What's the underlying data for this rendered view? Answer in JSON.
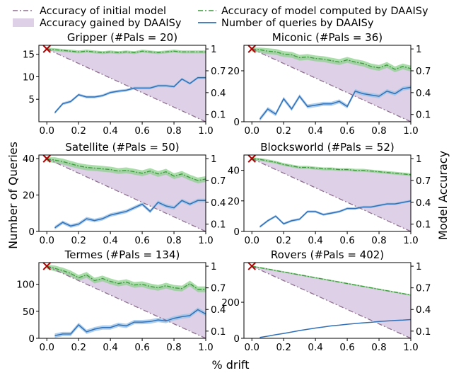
{
  "legend": {
    "initial": "Accuracy of initial model",
    "gained": "Accuracy gained by DAAISy",
    "computed": "Accuracy of model computed by DAAISy",
    "queries": "Number of queries by DAAISy"
  },
  "axis_labels": {
    "left": "Number of Queries",
    "right": "Model Accuracy",
    "bottom": "% drift"
  },
  "colors": {
    "initial": "#8e6f8e",
    "gained_fill": "#ddd0e7",
    "computed": "#3a9a3a",
    "computed_band": "#8fd18f",
    "queries": "#3070b8",
    "queries_band": "#9cc3e6",
    "start_marker": "#b00000"
  },
  "chart_data": [
    {
      "type": "line",
      "title": "Gripper (#Pals = 20)",
      "x": [
        0.0,
        0.05,
        0.1,
        0.15,
        0.2,
        0.25,
        0.3,
        0.35,
        0.4,
        0.45,
        0.5,
        0.55,
        0.6,
        0.65,
        0.7,
        0.75,
        0.8,
        0.85,
        0.9,
        0.95,
        1.0
      ],
      "xticks": [
        "0.0",
        "0.2",
        "0.4",
        "0.6",
        "0.8",
        "1.0"
      ],
      "xlim": [
        -0.05,
        1.0
      ],
      "ylim_left": [
        0,
        17
      ],
      "yticks_left": [
        5,
        10,
        15
      ],
      "ylim_right": [
        0,
        1.05
      ],
      "yticks_right": [
        0.1,
        0.4,
        0.7,
        1.0
      ],
      "series": [
        {
          "name": "Accuracy of initial model",
          "axis": "right",
          "values": [
            1.0,
            0.95,
            0.9,
            0.85,
            0.8,
            0.75,
            0.7,
            0.65,
            0.6,
            0.55,
            0.5,
            0.45,
            0.4,
            0.35,
            0.3,
            0.25,
            0.2,
            0.15,
            0.1,
            0.05,
            0.0
          ]
        },
        {
          "name": "Accuracy of model computed by DAAISy",
          "axis": "right",
          "values": [
            1.0,
            0.99,
            0.98,
            0.97,
            0.96,
            0.97,
            0.96,
            0.95,
            0.96,
            0.95,
            0.96,
            0.95,
            0.97,
            0.96,
            0.95,
            0.96,
            0.97,
            0.96,
            0.96,
            0.96,
            0.96
          ],
          "band": 0.02
        },
        {
          "name": "Number of queries by DAAISy",
          "axis": "left",
          "values": [
            null,
            2,
            4,
            4.5,
            6,
            5.5,
            5.5,
            5.8,
            6.5,
            6.8,
            7,
            7.5,
            7.5,
            7.5,
            8,
            8,
            7.8,
            9.5,
            8.5,
            9.8,
            9.8
          ],
          "band": 0.3
        }
      ]
    },
    {
      "type": "line",
      "title": "Miconic (#Pals = 36)",
      "x": [
        0.0,
        0.05,
        0.1,
        0.15,
        0.2,
        0.25,
        0.3,
        0.35,
        0.4,
        0.45,
        0.5,
        0.55,
        0.6,
        0.65,
        0.7,
        0.75,
        0.8,
        0.85,
        0.9,
        0.95,
        1.0
      ],
      "xticks": [
        "0.0",
        "0.2",
        "0.4",
        "0.6",
        "0.8",
        "1.0"
      ],
      "xlim": [
        -0.05,
        1.0
      ],
      "ylim_left": [
        0,
        30
      ],
      "yticks_left": [
        0,
        20
      ],
      "ylim_right": [
        0,
        1.05
      ],
      "yticks_right": [
        0.1,
        0.4,
        0.7,
        1.0
      ],
      "series": [
        {
          "name": "Accuracy of initial model",
          "axis": "right",
          "values": [
            1.0,
            0.95,
            0.9,
            0.85,
            0.8,
            0.75,
            0.7,
            0.65,
            0.6,
            0.55,
            0.5,
            0.45,
            0.4,
            0.35,
            0.3,
            0.25,
            0.2,
            0.15,
            0.1,
            0.05,
            0.0
          ]
        },
        {
          "name": "Accuracy of model computed by DAAISy",
          "axis": "right",
          "values": [
            1.0,
            0.99,
            0.97,
            0.96,
            0.93,
            0.92,
            0.88,
            0.89,
            0.87,
            0.86,
            0.84,
            0.82,
            0.85,
            0.82,
            0.8,
            0.76,
            0.74,
            0.78,
            0.72,
            0.76,
            0.73
          ],
          "band": 0.04
        },
        {
          "name": "Number of queries by DAAISy",
          "axis": "left",
          "values": [
            null,
            1,
            5,
            3,
            9,
            5,
            10,
            6,
            6.5,
            7,
            7,
            8,
            6,
            12,
            11,
            10.5,
            10,
            12,
            11,
            13,
            13.5
          ],
          "band": 0.8
        }
      ]
    },
    {
      "type": "line",
      "title": "Satellite (#Pals = 50)",
      "x": [
        0.0,
        0.05,
        0.1,
        0.15,
        0.2,
        0.25,
        0.3,
        0.35,
        0.4,
        0.45,
        0.5,
        0.55,
        0.6,
        0.65,
        0.7,
        0.75,
        0.8,
        0.85,
        0.9,
        0.95,
        1.0
      ],
      "xticks": [
        "0.0",
        "0.2",
        "0.4",
        "0.6",
        "0.8",
        "1.0"
      ],
      "xlim": [
        -0.05,
        1.0
      ],
      "ylim_left": [
        0,
        42
      ],
      "yticks_left": [
        0,
        20,
        40
      ],
      "ylim_right": [
        0,
        1.05
      ],
      "yticks_right": [
        0.1,
        0.4,
        0.7,
        1.0
      ],
      "series": [
        {
          "name": "Accuracy of initial model",
          "axis": "right",
          "values": [
            1.0,
            0.95,
            0.9,
            0.85,
            0.8,
            0.75,
            0.7,
            0.65,
            0.6,
            0.55,
            0.5,
            0.45,
            0.4,
            0.35,
            0.3,
            0.25,
            0.2,
            0.15,
            0.1,
            0.05,
            0.0
          ]
        },
        {
          "name": "Accuracy of model computed by DAAISy",
          "axis": "right",
          "values": [
            1.0,
            0.98,
            0.96,
            0.93,
            0.9,
            0.88,
            0.87,
            0.86,
            0.85,
            0.83,
            0.84,
            0.82,
            0.8,
            0.83,
            0.79,
            0.82,
            0.76,
            0.79,
            0.74,
            0.7,
            0.72
          ],
          "band": 0.04
        },
        {
          "name": "Number of queries by DAAISy",
          "axis": "left",
          "values": [
            null,
            2,
            5,
            3,
            4,
            7,
            6,
            7,
            9,
            10,
            11,
            13,
            15,
            11,
            16,
            14,
            13,
            17,
            15,
            17,
            17
          ],
          "band": 1
        }
      ]
    },
    {
      "type": "line",
      "title": "Blocksworld (#Pals = 52)",
      "x": [
        0.0,
        0.05,
        0.1,
        0.15,
        0.2,
        0.25,
        0.3,
        0.35,
        0.4,
        0.45,
        0.5,
        0.55,
        0.6,
        0.65,
        0.7,
        0.75,
        0.8,
        0.85,
        0.9,
        0.95,
        1.0
      ],
      "xticks": [
        "0.0",
        "0.2",
        "0.4",
        "0.6",
        "0.8",
        "1.0"
      ],
      "xlim": [
        -0.05,
        1.0
      ],
      "ylim_left": [
        0,
        50
      ],
      "yticks_left": [
        0,
        20,
        40
      ],
      "ylim_right": [
        0,
        1.05
      ],
      "yticks_right": [
        0.1,
        0.4,
        0.7,
        1.0
      ],
      "series": [
        {
          "name": "Accuracy of initial model",
          "axis": "right",
          "values": [
            1.0,
            0.95,
            0.9,
            0.85,
            0.8,
            0.75,
            0.7,
            0.65,
            0.6,
            0.55,
            0.5,
            0.45,
            0.4,
            0.35,
            0.3,
            0.25,
            0.2,
            0.15,
            0.1,
            0.05,
            0.0
          ]
        },
        {
          "name": "Accuracy of model computed by DAAISy",
          "axis": "right",
          "values": [
            1.0,
            0.99,
            0.97,
            0.95,
            0.92,
            0.9,
            0.88,
            0.88,
            0.87,
            0.86,
            0.86,
            0.85,
            0.85,
            0.84,
            0.84,
            0.83,
            0.82,
            0.81,
            0.8,
            0.79,
            0.78
          ],
          "band": 0.02
        },
        {
          "name": "Number of queries by DAAISy",
          "axis": "left",
          "values": [
            null,
            3,
            7,
            10,
            5,
            7,
            8,
            13,
            13,
            11,
            12,
            13,
            15,
            15,
            16,
            16,
            17,
            18,
            18,
            19,
            20
          ],
          "band": 0.8
        }
      ]
    },
    {
      "type": "line",
      "title": "Termes (#Pals = 134)",
      "x": [
        0.0,
        0.05,
        0.1,
        0.15,
        0.2,
        0.25,
        0.3,
        0.35,
        0.4,
        0.45,
        0.5,
        0.55,
        0.6,
        0.65,
        0.7,
        0.75,
        0.8,
        0.85,
        0.9,
        0.95,
        1.0
      ],
      "xticks": [
        "0.0",
        "0.2",
        "0.4",
        "0.6",
        "0.8",
        "1.0"
      ],
      "xlim": [
        -0.05,
        1.0
      ],
      "ylim_left": [
        0,
        140
      ],
      "yticks_left": [
        0,
        50,
        100
      ],
      "ylim_right": [
        0,
        1.05
      ],
      "yticks_right": [
        0.1,
        0.4,
        0.7,
        1.0
      ],
      "series": [
        {
          "name": "Accuracy of initial model",
          "axis": "right",
          "values": [
            1.0,
            0.95,
            0.9,
            0.85,
            0.8,
            0.75,
            0.7,
            0.65,
            0.6,
            0.55,
            0.5,
            0.45,
            0.4,
            0.35,
            0.3,
            0.25,
            0.2,
            0.15,
            0.1,
            0.05,
            0.0
          ]
        },
        {
          "name": "Accuracy of model computed by DAAISy",
          "axis": "right",
          "values": [
            1.0,
            0.97,
            0.94,
            0.9,
            0.84,
            0.88,
            0.8,
            0.83,
            0.79,
            0.76,
            0.78,
            0.74,
            0.75,
            0.72,
            0.7,
            0.73,
            0.7,
            0.69,
            0.76,
            0.68,
            0.68
          ],
          "band": 0.04
        },
        {
          "name": "Number of queries by DAAISy",
          "axis": "left",
          "values": [
            null,
            5,
            8,
            8,
            25,
            12,
            17,
            20,
            20,
            25,
            23,
            30,
            30,
            31,
            34,
            32,
            37,
            40,
            42,
            53,
            45
          ],
          "band": 4
        }
      ]
    },
    {
      "type": "line",
      "title": "Rovers (#Pals = 402)",
      "x": [
        0.0,
        0.05,
        0.1,
        0.15,
        0.2,
        0.25,
        0.3,
        0.35,
        0.4,
        0.45,
        0.5,
        0.55,
        0.6,
        0.65,
        0.7,
        0.75,
        0.8,
        0.85,
        0.9,
        0.95,
        1.0
      ],
      "xticks": [
        "0.0",
        "0.2",
        "0.4",
        "0.6",
        "0.8",
        "1.0"
      ],
      "xlim": [
        -0.05,
        1.0
      ],
      "ylim_left": [
        0,
        420
      ],
      "yticks_left": [
        0,
        200
      ],
      "ylim_right": [
        0,
        1.05
      ],
      "yticks_right": [
        0.1,
        0.4,
        0.7,
        1.0
      ],
      "series": [
        {
          "name": "Accuracy of initial model",
          "axis": "right",
          "values": [
            1.0,
            0.95,
            0.9,
            0.85,
            0.8,
            0.75,
            0.7,
            0.65,
            0.6,
            0.55,
            0.5,
            0.45,
            0.4,
            0.35,
            0.3,
            0.25,
            0.2,
            0.15,
            0.1,
            0.05,
            0.0
          ]
        },
        {
          "name": "Accuracy of model computed by DAAISy",
          "axis": "right",
          "values": [
            1.0,
            0.98,
            0.96,
            0.94,
            0.92,
            0.9,
            0.88,
            0.86,
            0.84,
            0.82,
            0.8,
            0.78,
            0.76,
            0.74,
            0.72,
            0.7,
            0.68,
            0.66,
            0.64,
            0.62,
            0.6
          ],
          "band": 0.01
        },
        {
          "name": "Number of queries by DAAISy",
          "axis": "left",
          "values": [
            null,
            5,
            12,
            20,
            27,
            35,
            43,
            50,
            57,
            63,
            69,
            73,
            78,
            82,
            86,
            89,
            93,
            96,
            99,
            101,
            104
          ],
          "band": 2
        }
      ]
    }
  ]
}
